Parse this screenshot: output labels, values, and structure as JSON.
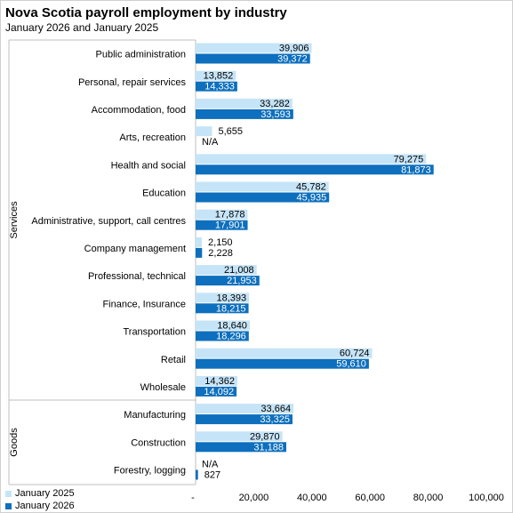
{
  "chart_data": {
    "type": "bar",
    "orientation": "horizontal",
    "title": "Nova Scotia payroll employment by industry",
    "subtitle": "January 2026 and January 2025",
    "groups": [
      {
        "name": "Services",
        "categories": [
          "Public administration",
          "Personal, repair services",
          "Accommodation, food",
          "Arts, recreation",
          "Health and social",
          "Education",
          "Administrative, support, call centres",
          "Company management",
          "Professional, technical",
          "Finance, Insurance",
          "Transportation",
          "Retail",
          "Wholesale"
        ]
      },
      {
        "name": "Goods",
        "categories": [
          "Manufacturing",
          "Construction",
          "Forestry, logging"
        ]
      }
    ],
    "categories": [
      "Public administration",
      "Personal, repair services",
      "Accommodation, food",
      "Arts, recreation",
      "Health and social",
      "Education",
      "Administrative, support, call centres",
      "Company management",
      "Professional, technical",
      "Finance, Insurance",
      "Transportation",
      "Retail",
      "Wholesale",
      "Manufacturing",
      "Construction",
      "Forestry, logging"
    ],
    "series": [
      {
        "name": "January 2025",
        "color": "#c6e4f7",
        "values": [
          39906,
          13852,
          33282,
          5655,
          79275,
          45782,
          17878,
          2150,
          21008,
          18393,
          18640,
          60724,
          14362,
          33664,
          29870,
          null
        ],
        "labels": [
          "39,906",
          "13,852",
          "33,282",
          "5,655",
          "79,275",
          "45,782",
          "17,878",
          "2,150",
          "21,008",
          "18,393",
          "18,640",
          "60,724",
          "14,362",
          "33,664",
          "29,870",
          "N/A"
        ]
      },
      {
        "name": "January 2026",
        "color": "#0d6fbd",
        "values": [
          39372,
          14333,
          33593,
          null,
          81873,
          45935,
          17901,
          2228,
          21953,
          18215,
          18296,
          59610,
          14092,
          33325,
          31188,
          827
        ],
        "labels": [
          "39,372",
          "14,333",
          "33,593",
          "N/A",
          "81,873",
          "45,935",
          "17,901",
          "2,228",
          "21,953",
          "18,215",
          "18,296",
          "59,610",
          "14,092",
          "33,325",
          "31,188",
          "827"
        ]
      }
    ],
    "xlim": [
      0,
      100000
    ],
    "xticks": [
      0,
      20000,
      40000,
      60000,
      80000,
      100000
    ],
    "xtick_labels": [
      "-",
      "20,000",
      "40,000",
      "60,000",
      "80,000",
      "100,000"
    ],
    "grid": false,
    "legend_position": "bottom-left"
  }
}
